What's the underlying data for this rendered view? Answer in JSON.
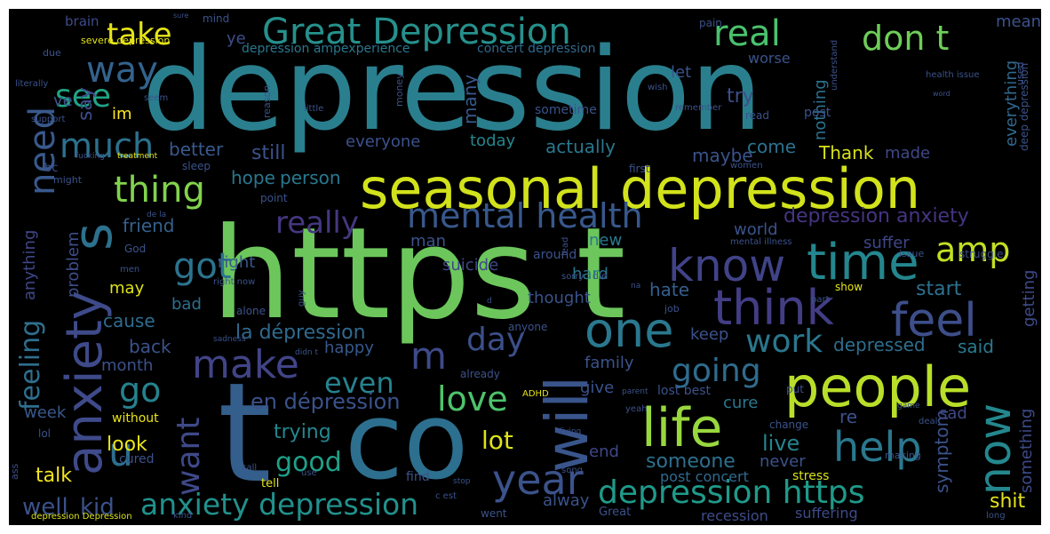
{
  "words": [
    {
      "text": "depression"
    },
    {
      "text": "https t"
    },
    {
      "text": "co"
    },
    {
      "text": "t"
    },
    {
      "text": "seasonal depression"
    },
    {
      "text": "Great Depression"
    },
    {
      "text": "people"
    },
    {
      "text": "life"
    },
    {
      "text": "will"
    },
    {
      "text": "anxiety"
    },
    {
      "text": "s"
    },
    {
      "text": "know"
    },
    {
      "text": "time"
    },
    {
      "text": "think"
    },
    {
      "text": "mental health"
    },
    {
      "text": "feel"
    },
    {
      "text": "one"
    },
    {
      "text": "make"
    },
    {
      "text": "help"
    },
    {
      "text": "now"
    },
    {
      "text": "year"
    },
    {
      "text": "depression https"
    },
    {
      "text": "anxiety depression"
    },
    {
      "text": "don t"
    },
    {
      "text": "amp"
    },
    {
      "text": "real"
    },
    {
      "text": "thing"
    },
    {
      "text": "much"
    },
    {
      "text": "way"
    },
    {
      "text": "see"
    },
    {
      "text": "need"
    },
    {
      "text": "take"
    },
    {
      "text": "got"
    },
    {
      "text": "really"
    },
    {
      "text": "going"
    },
    {
      "text": "work"
    },
    {
      "text": "day"
    },
    {
      "text": "even"
    },
    {
      "text": "love"
    },
    {
      "text": "u"
    },
    {
      "text": "want"
    },
    {
      "text": "go"
    },
    {
      "text": "m"
    },
    {
      "text": "feeling"
    },
    {
      "text": "good"
    },
    {
      "text": "la dépression"
    },
    {
      "text": "en dépression"
    },
    {
      "text": "depression anxiety"
    },
    {
      "text": "lot"
    },
    {
      "text": "someone"
    },
    {
      "text": "live"
    },
    {
      "text": "well"
    },
    {
      "text": "kid"
    },
    {
      "text": "talk"
    },
    {
      "text": "look"
    },
    {
      "text": "trying"
    },
    {
      "text": "shit"
    },
    {
      "text": "symptom"
    },
    {
      "text": "something"
    },
    {
      "text": "depressed"
    },
    {
      "text": "said"
    },
    {
      "text": "start"
    },
    {
      "text": "hate"
    },
    {
      "text": "keep"
    },
    {
      "text": "suicide"
    },
    {
      "text": "still"
    },
    {
      "text": "better"
    },
    {
      "text": "hope"
    },
    {
      "text": "person"
    },
    {
      "text": "Thank"
    },
    {
      "text": "made"
    },
    {
      "text": "come"
    },
    {
      "text": "maybe"
    },
    {
      "text": "actually"
    },
    {
      "text": "today"
    },
    {
      "text": "everyone"
    },
    {
      "text": "im"
    },
    {
      "text": "say"
    },
    {
      "text": "ve"
    },
    {
      "text": "many"
    },
    {
      "text": "try"
    },
    {
      "text": "let"
    },
    {
      "text": "friend"
    },
    {
      "text": "right"
    },
    {
      "text": "problem"
    },
    {
      "text": "anything"
    },
    {
      "text": "may"
    },
    {
      "text": "bad"
    },
    {
      "text": "cause"
    },
    {
      "text": "back"
    },
    {
      "text": "month"
    },
    {
      "text": "happy"
    },
    {
      "text": "thought"
    },
    {
      "text": "week"
    },
    {
      "text": "world"
    },
    {
      "text": "suffer"
    },
    {
      "text": "new"
    },
    {
      "text": "hard"
    },
    {
      "text": "man"
    },
    {
      "text": "nothing"
    },
    {
      "text": "everything"
    },
    {
      "text": "getting"
    },
    {
      "text": "family"
    },
    {
      "text": "give"
    },
    {
      "text": "cure"
    },
    {
      "text": "sad"
    },
    {
      "text": "re"
    },
    {
      "text": "end"
    },
    {
      "text": "never"
    },
    {
      "text": "post concert"
    },
    {
      "text": "stress"
    },
    {
      "text": "alway"
    },
    {
      "text": "recession"
    },
    {
      "text": "suffering"
    },
    {
      "text": "ye"
    },
    {
      "text": "mean"
    },
    {
      "text": "worse"
    },
    {
      "text": "brain"
    },
    {
      "text": "mind"
    },
    {
      "text": "pain"
    },
    {
      "text": "depression ampexperience"
    },
    {
      "text": "concert depression"
    },
    {
      "text": "deep depression"
    },
    {
      "text": "severe depression"
    },
    {
      "text": "literally"
    },
    {
      "text": "due"
    },
    {
      "text": "support"
    },
    {
      "text": "bc"
    },
    {
      "text": "might"
    },
    {
      "text": "sleep"
    },
    {
      "text": "reason"
    },
    {
      "text": "sometime"
    },
    {
      "text": "read"
    },
    {
      "text": "post"
    },
    {
      "text": "first"
    },
    {
      "text": "little"
    },
    {
      "text": "remember"
    },
    {
      "text": "money"
    },
    {
      "text": "treatment"
    },
    {
      "text": "women"
    },
    {
      "text": "wish"
    },
    {
      "text": "seem"
    },
    {
      "text": "understand"
    },
    {
      "text": "health issue"
    },
    {
      "text": "used"
    },
    {
      "text": "word"
    },
    {
      "text": "point"
    },
    {
      "text": "de la"
    },
    {
      "text": "God"
    },
    {
      "text": "men"
    },
    {
      "text": "around"
    },
    {
      "text": "lead"
    },
    {
      "text": "issue"
    },
    {
      "text": "mental illness"
    },
    {
      "text": "struggle"
    },
    {
      "text": "right now"
    },
    {
      "text": "alone"
    },
    {
      "text": "guy"
    },
    {
      "text": "sorry"
    },
    {
      "text": "die"
    },
    {
      "text": "na"
    },
    {
      "text": "job"
    },
    {
      "text": "part"
    },
    {
      "text": "show"
    },
    {
      "text": "anyone"
    },
    {
      "text": "already"
    },
    {
      "text": "parent"
    },
    {
      "text": "sadness"
    },
    {
      "text": "didn t"
    },
    {
      "text": "without"
    },
    {
      "text": "lol"
    },
    {
      "text": "cured"
    },
    {
      "text": "call"
    },
    {
      "text": "find"
    },
    {
      "text": "tell"
    },
    {
      "text": "use"
    },
    {
      "text": "song"
    },
    {
      "text": "ADHD"
    },
    {
      "text": "yeah"
    },
    {
      "text": "living"
    },
    {
      "text": "lost best"
    },
    {
      "text": "put"
    },
    {
      "text": "change"
    },
    {
      "text": "game"
    },
    {
      "text": "deal"
    },
    {
      "text": "making"
    },
    {
      "text": "ass"
    },
    {
      "text": "stop"
    },
    {
      "text": "c est"
    },
    {
      "text": "went"
    },
    {
      "text": "Great"
    },
    {
      "text": "kind"
    },
    {
      "text": "long"
    },
    {
      "text": "depression Depression"
    },
    {
      "text": "sure"
    },
    {
      "text": "fucking"
    },
    {
      "text": "d"
    }
  ]
}
